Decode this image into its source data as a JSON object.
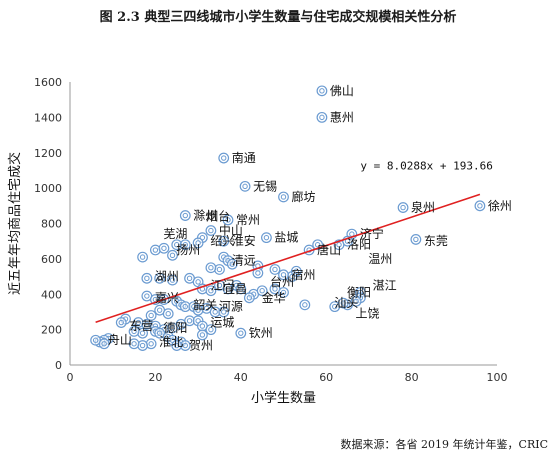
{
  "chart_data": {
    "type": "scatter",
    "title": "图 2.3  典型三四线城市小学生数量与住宅成交规模相关性分析",
    "xlabel": "小学生数量",
    "ylabel": "近五年年均商品住宅成交",
    "xlim": [
      0,
      100
    ],
    "ylim": [
      0,
      1600
    ],
    "xticks": [
      0,
      20,
      40,
      60,
      80,
      100
    ],
    "yticks": [
      0,
      200,
      400,
      600,
      800,
      1000,
      1200,
      1400,
      1600
    ],
    "grid": false,
    "marker_color": "#6b9bd1",
    "trendline": {
      "slope": 8.0288,
      "intercept": 193.66,
      "x_range": [
        6,
        96
      ],
      "color": "#e02020",
      "label": "y = 8.0288x + 193.66"
    },
    "labels": [
      {
        "name": "佛山",
        "x": 59,
        "y": 1550
      },
      {
        "name": "惠州",
        "x": 59,
        "y": 1400
      },
      {
        "name": "南通",
        "x": 36,
        "y": 1170
      },
      {
        "name": "无锡",
        "x": 41,
        "y": 1010
      },
      {
        "name": "廊坊",
        "x": 50,
        "y": 950
      },
      {
        "name": "泉州",
        "x": 78,
        "y": 890
      },
      {
        "name": "徐州",
        "x": 96,
        "y": 900
      },
      {
        "name": "滁州",
        "x": 27,
        "y": 845
      },
      {
        "name": "烟台",
        "x": 30,
        "y": 840
      },
      {
        "name": "常州",
        "x": 37,
        "y": 820
      },
      {
        "name": "中山",
        "x": 33,
        "y": 760
      },
      {
        "name": "芜湖",
        "x": 20,
        "y": 740
      },
      {
        "name": "绍兴",
        "x": 31,
        "y": 700
      },
      {
        "name": "淮安",
        "x": 36,
        "y": 700
      },
      {
        "name": "盐城",
        "x": 46,
        "y": 720
      },
      {
        "name": "济宁",
        "x": 66,
        "y": 740
      },
      {
        "name": "东莞",
        "x": 81,
        "y": 700
      },
      {
        "name": "洛阳",
        "x": 63,
        "y": 680
      },
      {
        "name": "唐山",
        "x": 56,
        "y": 650
      },
      {
        "name": "扬州",
        "x": 23,
        "y": 650
      },
      {
        "name": "清远",
        "x": 36,
        "y": 590
      },
      {
        "name": "温州",
        "x": 68,
        "y": 600
      },
      {
        "name": "湖州",
        "x": 18,
        "y": 500
      },
      {
        "name": "宿州",
        "x": 50,
        "y": 510
      },
      {
        "name": "湛江",
        "x": 69,
        "y": 450
      },
      {
        "name": "衡阳",
        "x": 63,
        "y": 410
      },
      {
        "name": "嘉兴",
        "x": 18,
        "y": 380
      },
      {
        "name": "江门",
        "x": 31,
        "y": 450
      },
      {
        "name": "宜昌",
        "x": 34,
        "y": 430
      },
      {
        "name": "台州",
        "x": 45,
        "y": 470
      },
      {
        "name": "舟山",
        "x": 7,
        "y": 140
      },
      {
        "name": "淮北",
        "x": 19,
        "y": 130
      },
      {
        "name": "贺州",
        "x": 26,
        "y": 110
      },
      {
        "name": "东营",
        "x": 12,
        "y": 220
      },
      {
        "name": "德阳",
        "x": 20,
        "y": 210
      },
      {
        "name": "运城",
        "x": 31,
        "y": 240
      },
      {
        "name": "钦州",
        "x": 40,
        "y": 180
      },
      {
        "name": "河源",
        "x": 33,
        "y": 330
      },
      {
        "name": "韶关",
        "x": 27,
        "y": 340
      },
      {
        "name": "金华",
        "x": 43,
        "y": 380
      },
      {
        "name": "汕头",
        "x": 60,
        "y": 350
      },
      {
        "name": "上饶",
        "x": 65,
        "y": 290
      }
    ],
    "points": [
      [
        59,
        1550
      ],
      [
        59,
        1400
      ],
      [
        36,
        1170
      ],
      [
        41,
        1010
      ],
      [
        50,
        950
      ],
      [
        78,
        890
      ],
      [
        96,
        900
      ],
      [
        27,
        845
      ],
      [
        37,
        820
      ],
      [
        33,
        760
      ],
      [
        31,
        720
      ],
      [
        30,
        690
      ],
      [
        36,
        700
      ],
      [
        46,
        720
      ],
      [
        66,
        740
      ],
      [
        65,
        700
      ],
      [
        81,
        710
      ],
      [
        63,
        680
      ],
      [
        58,
        680
      ],
      [
        56,
        650
      ],
      [
        20,
        650
      ],
      [
        22,
        660
      ],
      [
        25,
        680
      ],
      [
        27,
        680
      ],
      [
        17,
        610
      ],
      [
        24,
        620
      ],
      [
        36,
        610
      ],
      [
        37,
        590
      ],
      [
        38,
        570
      ],
      [
        35,
        540
      ],
      [
        33,
        550
      ],
      [
        44,
        560
      ],
      [
        44,
        520
      ],
      [
        48,
        540
      ],
      [
        52,
        500
      ],
      [
        50,
        510
      ],
      [
        53,
        530
      ],
      [
        18,
        490
      ],
      [
        21,
        490
      ],
      [
        24,
        480
      ],
      [
        28,
        490
      ],
      [
        30,
        470
      ],
      [
        31,
        430
      ],
      [
        33,
        420
      ],
      [
        35,
        450
      ],
      [
        37,
        430
      ],
      [
        39,
        450
      ],
      [
        40,
        430
      ],
      [
        43,
        400
      ],
      [
        45,
        420
      ],
      [
        48,
        430
      ],
      [
        50,
        410
      ],
      [
        42,
        380
      ],
      [
        68,
        410
      ],
      [
        68,
        380
      ],
      [
        67,
        360
      ],
      [
        65,
        340
      ],
      [
        62,
        330
      ],
      [
        64,
        350
      ],
      [
        55,
        340
      ],
      [
        18,
        390
      ],
      [
        20,
        370
      ],
      [
        22,
        370
      ],
      [
        25,
        360
      ],
      [
        26,
        340
      ],
      [
        27,
        330
      ],
      [
        29,
        330
      ],
      [
        30,
        310
      ],
      [
        32,
        320
      ],
      [
        34,
        300
      ],
      [
        36,
        300
      ],
      [
        21,
        310
      ],
      [
        23,
        290
      ],
      [
        19,
        280
      ],
      [
        13,
        260
      ],
      [
        12,
        240
      ],
      [
        16,
        240
      ],
      [
        18,
        230
      ],
      [
        20,
        220
      ],
      [
        22,
        200
      ],
      [
        24,
        210
      ],
      [
        26,
        230
      ],
      [
        28,
        250
      ],
      [
        30,
        250
      ],
      [
        31,
        220
      ],
      [
        20,
        190
      ],
      [
        21,
        180
      ],
      [
        17,
        180
      ],
      [
        15,
        190
      ],
      [
        23,
        160
      ],
      [
        24,
        140
      ],
      [
        26,
        130
      ],
      [
        27,
        110
      ],
      [
        25,
        110
      ],
      [
        19,
        120
      ],
      [
        17,
        110
      ],
      [
        15,
        120
      ],
      [
        9,
        150
      ],
      [
        8,
        140
      ],
      [
        7,
        130
      ],
      [
        6,
        140
      ],
      [
        8,
        120
      ],
      [
        40,
        180
      ],
      [
        31,
        170
      ],
      [
        33,
        200
      ]
    ]
  },
  "source": "数据来源：各省 2019 年统计年鉴，CRIC"
}
